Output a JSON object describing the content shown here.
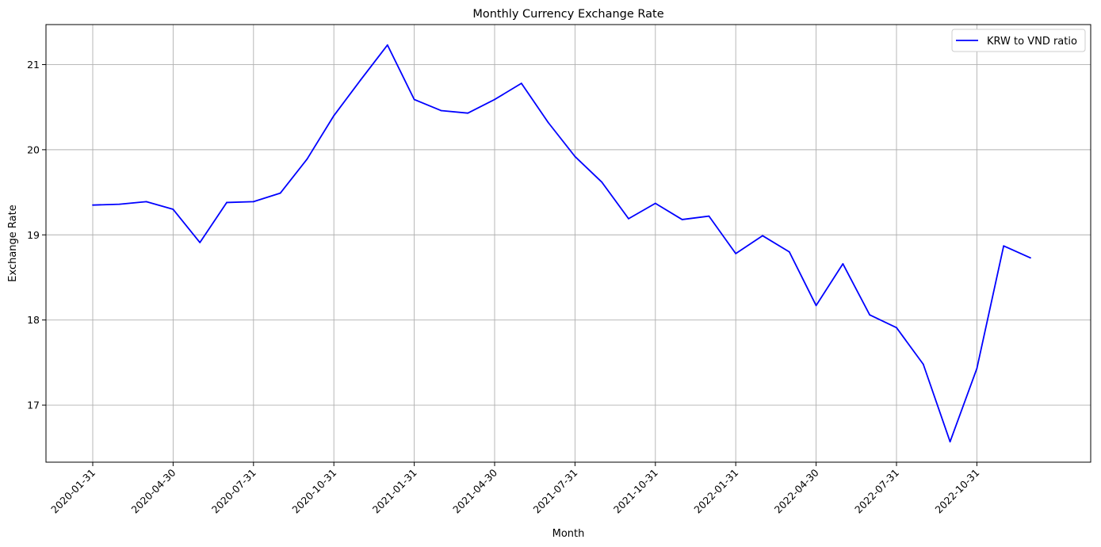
{
  "chart_data": {
    "type": "line",
    "title": "Monthly Currency Exchange Rate",
    "xlabel": "Month",
    "ylabel": "Exchange Rate",
    "x": [
      "2020-01-31",
      "2020-02-29",
      "2020-03-31",
      "2020-04-30",
      "2020-05-31",
      "2020-06-30",
      "2020-07-31",
      "2020-08-31",
      "2020-09-30",
      "2020-10-31",
      "2020-11-30",
      "2020-12-31",
      "2021-01-31",
      "2021-02-28",
      "2021-03-31",
      "2021-04-30",
      "2021-05-31",
      "2021-06-30",
      "2021-07-31",
      "2021-08-31",
      "2021-09-30",
      "2021-10-31",
      "2021-11-30",
      "2021-12-31",
      "2022-01-31",
      "2022-02-28",
      "2022-03-31",
      "2022-04-30",
      "2022-05-31",
      "2022-06-30",
      "2022-07-31",
      "2022-08-31",
      "2022-09-30",
      "2022-10-31",
      "2022-11-30",
      "2022-12-31"
    ],
    "series": [
      {
        "name": "KRW to VND ratio",
        "color": "#0000ff",
        "values": [
          19.35,
          19.36,
          19.39,
          19.3,
          18.91,
          19.38,
          19.39,
          19.49,
          19.89,
          20.4,
          20.82,
          21.23,
          20.59,
          20.46,
          20.43,
          20.59,
          20.78,
          20.32,
          19.92,
          19.62,
          19.19,
          19.37,
          19.18,
          19.22,
          18.78,
          18.99,
          18.8,
          18.17,
          18.66,
          18.06,
          17.91,
          17.48,
          16.57,
          17.43,
          18.87,
          18.73
        ]
      }
    ],
    "xticks": [
      "2020-01-31",
      "2020-04-30",
      "2020-07-31",
      "2020-10-31",
      "2021-01-31",
      "2021-04-30",
      "2021-07-31",
      "2021-10-31",
      "2022-01-31",
      "2022-04-30",
      "2022-07-31",
      "2022-10-31"
    ],
    "yticks": [
      17,
      18,
      19,
      20,
      21
    ],
    "ylim": [
      16.33,
      21.47
    ],
    "grid": true,
    "legend_position": "top-right"
  }
}
